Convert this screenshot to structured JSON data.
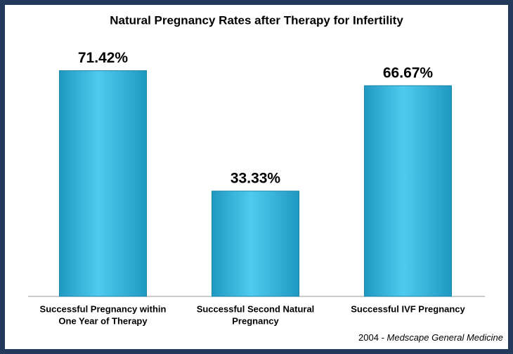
{
  "chart_data": {
    "type": "bar",
    "title": "Natural Pregnancy Rates after Therapy for Infertility",
    "categories": [
      [
        "Successful Pregnancy within",
        "One Year of Therapy"
      ],
      [
        "Successful  Second Natural",
        "Pregnancy"
      ],
      [
        "Successful IVF Pregnancy"
      ]
    ],
    "values": [
      71.42,
      33.33,
      66.67
    ],
    "value_labels": [
      "71.42%",
      "33.33%",
      "66.67%"
    ],
    "color": "#38bde3",
    "ylim": [
      0,
      80
    ],
    "source": [
      "2004 - ",
      "Medscape General Medicine"
    ]
  }
}
